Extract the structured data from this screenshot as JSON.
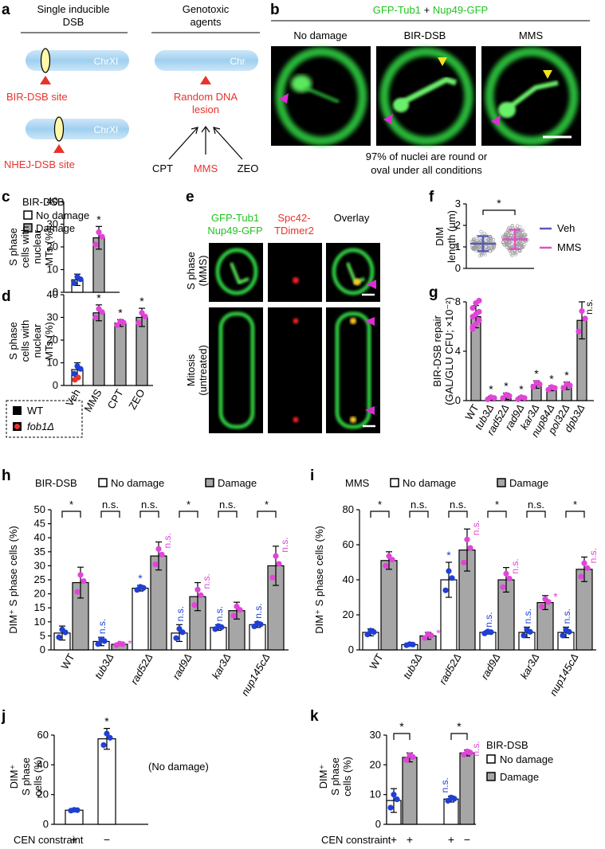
{
  "panels": {
    "a": {
      "label": "a",
      "left_title": [
        "Single inducible",
        "DSB"
      ],
      "right_title": [
        "Genotoxic",
        "agents"
      ],
      "chr_xi": "ChrXI",
      "chr": "Chr",
      "bir_site": "BIR-DSB site",
      "nhej_site": "NHEJ-DSB site",
      "random_lesion": [
        "Random DNA",
        "lesion"
      ],
      "agents": [
        "CPT",
        "MMS",
        "ZEO"
      ]
    },
    "b": {
      "label": "b",
      "title_parts": [
        "GFP-Tub1",
        " + ",
        "Nup49-GFP"
      ],
      "conditions": [
        "No damage",
        "BIR-DSB",
        "MMS"
      ],
      "caption": [
        "97% of nuclei are round or",
        "oval under all conditions"
      ]
    },
    "e": {
      "label": "e",
      "col_heads": [
        [
          "GFP-Tub1",
          "Nup49-GFP"
        ],
        [
          "Spc42-",
          "TDimer2"
        ],
        [
          "Overlay"
        ]
      ],
      "row_heads": [
        [
          "S phase",
          "(MMS)"
        ],
        [
          "Mitosis",
          "(untreated)"
        ]
      ]
    },
    "legend_cd": {
      "bir": "BIR-DSB",
      "no_damage": "No damage",
      "damage": "Damage",
      "wt": "WT",
      "fob1": "fob1Δ"
    },
    "legend_hi": {
      "no_damage": "No damage",
      "damage": "Damage"
    },
    "legend_k": {
      "bir": "BIR-DSB",
      "no_damage": "No damage",
      "damage": "Damage"
    },
    "j_note": "(No damage)",
    "cen_label": "CEN constraint",
    "f_legend": {
      "veh": "Veh",
      "mms": "MMS"
    }
  },
  "colors": {
    "wt_dot": "#1f3fd6",
    "damage_dot": "#e045d8",
    "fob1_dot": "#e8332b",
    "bar_gray": "#a6a6a6",
    "veh": "#5a5ab8",
    "mms": "#e052c8",
    "gfp": "#2ecc40"
  },
  "chart_data": [
    {
      "id": "c",
      "label": "c",
      "type": "bar",
      "categories": [
        "No damage",
        "Damage"
      ],
      "values": [
        5.5,
        24
      ],
      "errors": [
        2.5,
        5
      ],
      "ylabel": [
        "S phase",
        "cells with",
        "nuclear",
        "MTs (%)"
      ],
      "ylim": [
        0,
        40
      ],
      "yticks": [
        0,
        10,
        20,
        30,
        40
      ],
      "stars": [
        "",
        "*"
      ]
    },
    {
      "id": "d",
      "label": "d",
      "type": "bar",
      "categories": [
        "Veh",
        "MMS",
        "CPT",
        "ZEO"
      ],
      "values": [
        7,
        32,
        27.5,
        30
      ],
      "errors": [
        3,
        3.5,
        1.5,
        4
      ],
      "ylabel": [
        "S phase",
        "cells with",
        "nuclear",
        "MTs (%)"
      ],
      "ylim": [
        0,
        40
      ],
      "yticks": [
        0,
        10,
        20,
        30,
        40
      ],
      "stars": [
        "",
        "*",
        "*",
        "*"
      ]
    },
    {
      "id": "f",
      "label": "f",
      "type": "scatter",
      "ylabel": [
        "DIM",
        "length (μm)"
      ],
      "ylim": [
        0,
        3
      ],
      "yticks": [
        0,
        1,
        2,
        3
      ],
      "series": [
        {
          "name": "Veh",
          "mean": 1.15,
          "sd": 0.35
        },
        {
          "name": "MMS",
          "mean": 1.35,
          "sd": 0.45
        }
      ],
      "stars": [
        "*"
      ]
    },
    {
      "id": "g",
      "label": "g",
      "type": "bar",
      "categories": [
        "WT",
        "tub3Δ",
        "rad52Δ",
        "rad9Δ",
        "kar3Δ",
        "nup84Δ",
        "pol32Δ",
        "dpb3Δ"
      ],
      "values": [
        6.8,
        0.2,
        0.35,
        0.2,
        1.3,
        1.0,
        1.2,
        6.5
      ],
      "errors": [
        0.9,
        0.15,
        0.25,
        0.15,
        0.3,
        0.2,
        0.3,
        1.5
      ],
      "ylabel": [
        "BIR-DSB repair",
        "(GAL/GLU CFU; ×10⁻²)"
      ],
      "ylim": [
        0,
        8
      ],
      "yticks": [
        0,
        4,
        8
      ],
      "stars": [
        "",
        "*",
        "*",
        "*",
        "*",
        "*",
        "*",
        "n.s."
      ]
    },
    {
      "id": "h",
      "label": "h",
      "type": "bar",
      "title": "BIR-DSB",
      "categories": [
        "WT",
        "tub3Δ",
        "rad52Δ",
        "rad9Δ",
        "kar3Δ",
        "nup145cΔ"
      ],
      "series": [
        {
          "name": "No damage",
          "values": [
            6,
            3,
            22,
            6,
            8,
            9
          ],
          "errors": [
            2.5,
            1.5,
            1,
            3,
            1,
            1
          ]
        },
        {
          "name": "Damage",
          "values": [
            24,
            2,
            33.5,
            19,
            14,
            30
          ],
          "errors": [
            5.5,
            0.5,
            5,
            5,
            3,
            7
          ]
        }
      ],
      "ylabel": "DIM⁺ S phase cells (%)",
      "ylim": [
        0,
        50
      ],
      "yticks": [
        0,
        5,
        10,
        15,
        20,
        25,
        30,
        35,
        40,
        45,
        50
      ],
      "bracket_marks": [
        "*",
        "n.s.",
        "n.s.",
        "*",
        "n.s.",
        "*"
      ],
      "nd_marks": [
        "",
        "n.s.",
        "*",
        "n.s.",
        "n.s.",
        "n.s."
      ],
      "d_marks": [
        "",
        "*",
        "n.s.",
        "n.s.",
        "",
        "n.s."
      ]
    },
    {
      "id": "i",
      "label": "i",
      "type": "bar",
      "title": "MMS",
      "categories": [
        "WT",
        "tub3Δ",
        "rad52Δ",
        "rad9Δ",
        "kar3Δ",
        "nup145cΔ"
      ],
      "series": [
        {
          "name": "No damage",
          "values": [
            10,
            3,
            40,
            10,
            10,
            10
          ],
          "errors": [
            2,
            0.5,
            10,
            1,
            3,
            3
          ]
        },
        {
          "name": "Damage",
          "values": [
            51,
            8,
            57,
            40,
            27,
            46
          ],
          "errors": [
            5,
            2,
            12,
            7,
            4,
            7
          ]
        }
      ],
      "ylabel": "DIM⁺ S phase cells (%)",
      "ylim": [
        0,
        80
      ],
      "yticks": [
        0,
        20,
        40,
        60,
        80
      ],
      "bracket_marks": [
        "*",
        "n.s.",
        "n.s.",
        "*",
        "n.s.",
        "*"
      ],
      "nd_marks": [
        "",
        "",
        "*",
        "n.s.",
        "n.s.",
        "n.s."
      ],
      "d_marks": [
        "",
        "*",
        "n.s.",
        "n.s.",
        "*",
        "n.s."
      ]
    },
    {
      "id": "j",
      "label": "j",
      "type": "bar",
      "categories": [
        "+",
        "−"
      ],
      "values": [
        9.5,
        57.5
      ],
      "errors": [
        0.5,
        7
      ],
      "ylabel": [
        "DIM⁺",
        "S phase",
        "cells (%)"
      ],
      "ylim": [
        0,
        60
      ],
      "yticks": [
        0,
        20,
        40,
        60
      ],
      "stars": [
        "",
        "*"
      ]
    },
    {
      "id": "k",
      "label": "k",
      "type": "bar",
      "categories": [
        "+",
        "+",
        "+",
        "−"
      ],
      "values": [
        8,
        22.5,
        8.5,
        24
      ],
      "errors": [
        4,
        1.5,
        1,
        1
      ],
      "ylabel": [
        "DIM⁺",
        "S phase",
        "cells (%)"
      ],
      "ylim": [
        0,
        30
      ],
      "yticks": [
        0,
        10,
        20,
        30
      ],
      "bracket_marks": [
        "*",
        "*"
      ],
      "nd_marks": [
        "",
        "n.s."
      ],
      "d_marks": [
        "",
        "n.s."
      ]
    }
  ]
}
